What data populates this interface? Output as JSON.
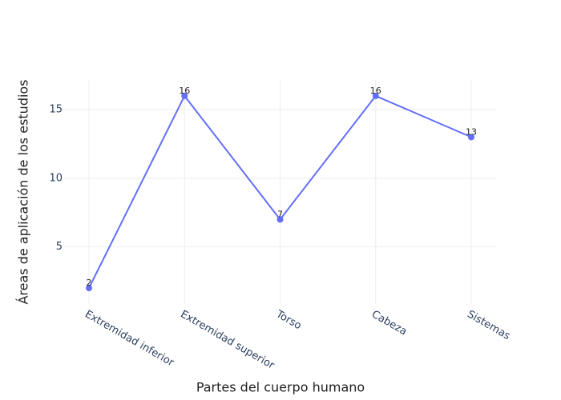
{
  "chart_data": {
    "type": "line",
    "x_label": "Partes del cuerpo humano",
    "y_label": "Áreas de aplicación de los estudios",
    "categories": [
      "Extremidad inferior",
      "Extremidad superior",
      "Torso",
      "Cabeza",
      "Sistemas"
    ],
    "values": [
      2,
      16,
      7,
      16,
      13
    ],
    "color": "#636efa",
    "ylim": [
      0.84,
      17.16
    ],
    "yticks": [
      5,
      10,
      15
    ],
    "grid": true,
    "data_labels": true
  }
}
